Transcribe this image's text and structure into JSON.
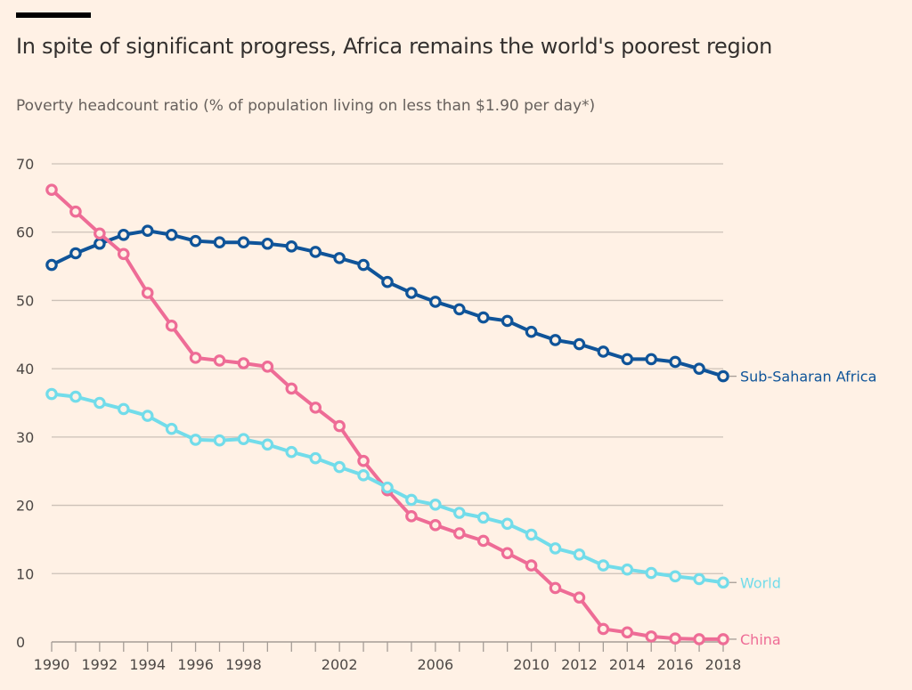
{
  "header": {
    "title": "In spite of significant progress, Africa remains the world's poorest region",
    "subtitle": "Poverty headcount ratio (% of population living on less than $1.90 per day*)"
  },
  "chart_data": {
    "type": "line",
    "title": "In spite of significant progress, Africa remains the world's poorest region",
    "subtitle": "Poverty headcount ratio (% of population living on less than $1.90 per day*)",
    "xlabel": "",
    "ylabel": "",
    "x": [
      1990,
      1991,
      1992,
      1993,
      1994,
      1995,
      1996,
      1997,
      1998,
      1999,
      2000,
      2001,
      2002,
      2003,
      2004,
      2005,
      2006,
      2007,
      2008,
      2009,
      2010,
      2011,
      2012,
      2013,
      2014,
      2015,
      2016,
      2017,
      2018
    ],
    "xlim": [
      1990,
      2018
    ],
    "ylim": [
      0,
      70
    ],
    "yticks": [
      0,
      10,
      20,
      30,
      40,
      50,
      60,
      70
    ],
    "xticks": [
      1990,
      1991,
      1992,
      1993,
      1994,
      1995,
      1996,
      1997,
      1998,
      1999,
      2000,
      2001,
      2002,
      2003,
      2004,
      2005,
      2006,
      2007,
      2008,
      2009,
      2010,
      2011,
      2012,
      2013,
      2014,
      2015,
      2016,
      2017,
      2018
    ],
    "xtick_labels": [
      {
        "year": 1990,
        "label": "1990"
      },
      {
        "year": 1992,
        "label": "1992"
      },
      {
        "year": 1994,
        "label": "1994"
      },
      {
        "year": 1996,
        "label": "1996"
      },
      {
        "year": 1998,
        "label": "1998"
      },
      {
        "year": 2002,
        "label": "2002"
      },
      {
        "year": 2006,
        "label": "2006"
      },
      {
        "year": 2010,
        "label": "2010"
      },
      {
        "year": 2012,
        "label": "2012"
      },
      {
        "year": 2014,
        "label": "2014"
      },
      {
        "year": 2016,
        "label": "2016"
      },
      {
        "year": 2018,
        "label": "2018"
      }
    ],
    "grid": true,
    "legend": "direct labels at right end of lines",
    "series": [
      {
        "name": "Sub-Saharan Africa",
        "color": "#0f5499",
        "values": [
          55.2,
          56.9,
          58.3,
          59.6,
          60.2,
          59.6,
          58.7,
          58.5,
          58.5,
          58.3,
          57.9,
          57.1,
          56.2,
          55.2,
          52.7,
          51.1,
          49.8,
          48.7,
          47.5,
          47.0,
          45.4,
          44.2,
          43.6,
          42.5,
          41.4,
          41.4,
          41.0,
          40.0,
          38.9
        ]
      },
      {
        "name": "World",
        "color": "#72dcea",
        "values": [
          36.3,
          35.9,
          35.0,
          34.1,
          33.1,
          31.2,
          29.6,
          29.5,
          29.7,
          28.9,
          27.8,
          26.9,
          25.6,
          24.4,
          22.6,
          20.8,
          20.1,
          18.9,
          18.2,
          17.3,
          15.7,
          13.7,
          12.8,
          11.2,
          10.6,
          10.1,
          9.6,
          9.2,
          8.7
        ]
      },
      {
        "name": "China",
        "color": "#ee6c96",
        "values": [
          66.2,
          63.0,
          59.8,
          56.8,
          51.1,
          46.3,
          41.6,
          41.2,
          40.8,
          40.3,
          37.1,
          34.3,
          31.6,
          26.5,
          22.2,
          18.4,
          17.1,
          15.9,
          14.8,
          13.0,
          11.2,
          7.9,
          6.5,
          1.9,
          1.4,
          0.8,
          0.5,
          0.4,
          0.4
        ]
      }
    ]
  },
  "colors": {
    "background": "#fff1e5",
    "gridline": "#ccc1b7",
    "axis": "#a59d96",
    "text": "#33302e"
  }
}
